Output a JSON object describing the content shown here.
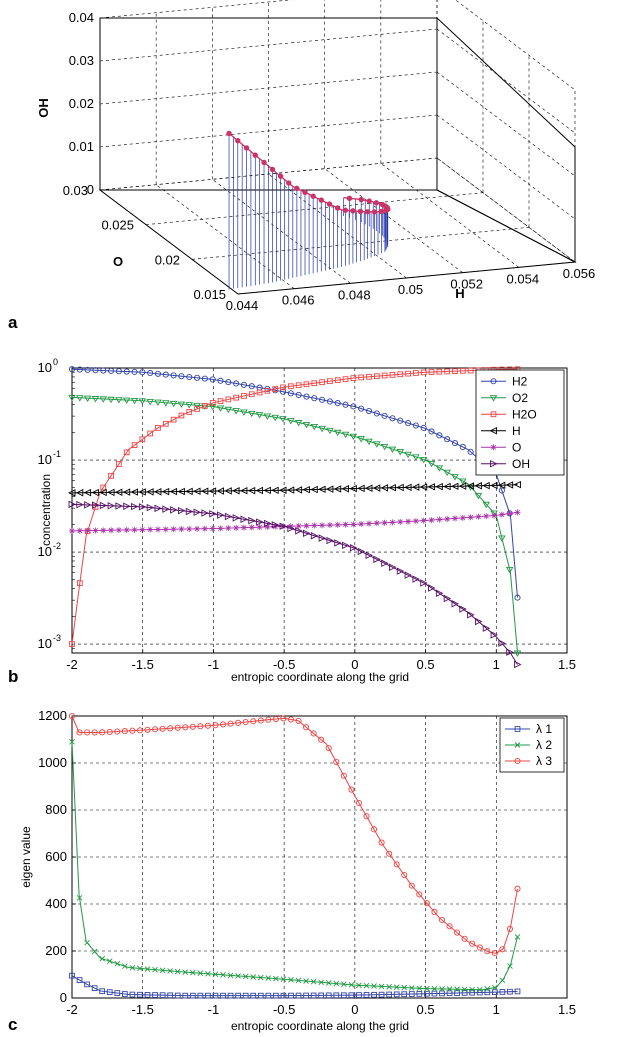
{
  "chart_data": [
    {
      "panel": "a",
      "type": "line3d",
      "xlabel": "H",
      "ylabel": "O",
      "zlabel": "OH",
      "xlim": [
        0.044,
        0.056
      ],
      "ylim": [
        0.015,
        0.03
      ],
      "zlim": [
        0,
        0.04
      ],
      "x_ticks": [
        "0.044",
        "0.046",
        "0.048",
        "0.05",
        "0.052",
        "0.054",
        "0.056"
      ],
      "y_ticks": [
        "0.015",
        "0.02",
        "0.025",
        "0.03"
      ],
      "z_ticks": [
        "0",
        "0.01",
        "0.02",
        "0.03",
        "0.04"
      ],
      "grid": true,
      "series": [
        {
          "color": "#cc3366",
          "stem_color": "#2233aa",
          "points": [
            [
              0.0445,
              0.0175,
              0.033
            ],
            [
              0.045,
              0.0176,
              0.03
            ],
            [
              0.0455,
              0.0177,
              0.027
            ],
            [
              0.046,
              0.0178,
              0.024
            ],
            [
              0.0465,
              0.018,
              0.021
            ],
            [
              0.047,
              0.0182,
              0.018
            ],
            [
              0.0475,
              0.0184,
              0.016
            ],
            [
              0.048,
              0.0186,
              0.014
            ],
            [
              0.0485,
              0.0188,
              0.012
            ],
            [
              0.049,
              0.019,
              0.01
            ],
            [
              0.0495,
              0.0193,
              0.009
            ],
            [
              0.05,
              0.0196,
              0.008
            ],
            [
              0.0505,
              0.02,
              0.007
            ],
            [
              0.051,
              0.0204,
              0.0062
            ],
            [
              0.0513,
              0.021,
              0.0055
            ],
            [
              0.0515,
              0.0217,
              0.0048
            ],
            [
              0.0516,
              0.0225,
              0.004
            ],
            [
              0.0516,
              0.0235,
              0.003
            ],
            [
              0.0515,
              0.0245,
              0.002
            ],
            [
              0.0512,
              0.0255,
              0.001
            ]
          ]
        }
      ]
    },
    {
      "panel": "b",
      "type": "line",
      "xlabel": "entropic coordinate along the grid",
      "ylabel": "concentration",
      "xlim": [
        -2,
        1.5
      ],
      "ylim": [
        0.0008,
        1
      ],
      "yscale": "log",
      "x_ticks": [
        "-2",
        "-1.5",
        "-1",
        "-0.5",
        "0",
        "0.5",
        "1",
        "1.5"
      ],
      "y_ticks": [
        "10",
        "10",
        "10",
        "10"
      ],
      "y_tick_exponents": [
        "0",
        "-1",
        "-2",
        "-3"
      ],
      "grid": true,
      "legend_position": "top-right",
      "series": [
        {
          "name": "H2",
          "color": "#3344aa",
          "marker": "circle",
          "x": [
            -2,
            -1.5,
            -1,
            -0.5,
            0,
            0.5,
            0.8,
            1,
            1.1,
            1.15
          ],
          "y": [
            0.97,
            0.9,
            0.75,
            0.55,
            0.38,
            0.22,
            0.13,
            0.07,
            0.025,
            0.0032
          ]
        },
        {
          "name": "O2",
          "color": "#229944",
          "marker": "triangle-down",
          "x": [
            -2,
            -1.5,
            -1,
            -0.5,
            0,
            0.5,
            0.8,
            1,
            1.1,
            1.15
          ],
          "y": [
            0.48,
            0.44,
            0.38,
            0.28,
            0.18,
            0.1,
            0.055,
            0.025,
            0.006,
            0.0008
          ]
        },
        {
          "name": "H2O",
          "color": "#ee4444",
          "marker": "square",
          "x": [
            -2,
            -1.95,
            -1.9,
            -1.8,
            -1.6,
            -1.4,
            -1.2,
            -1,
            -0.5,
            0,
            0.5,
            1,
            1.15
          ],
          "y": [
            0.001,
            0.004,
            0.015,
            0.045,
            0.13,
            0.22,
            0.32,
            0.42,
            0.62,
            0.78,
            0.9,
            0.96,
            0.97
          ]
        },
        {
          "name": "H",
          "color": "#000000",
          "marker": "triangle-left",
          "x": [
            -2,
            -1.5,
            -1,
            -0.5,
            0,
            0.5,
            1,
            1.15
          ],
          "y": [
            0.044,
            0.045,
            0.046,
            0.047,
            0.049,
            0.051,
            0.053,
            0.054
          ]
        },
        {
          "name": "O",
          "color": "#aa33aa",
          "marker": "star",
          "x": [
            -2,
            -1.5,
            -1,
            -0.5,
            0,
            0.5,
            1,
            1.15
          ],
          "y": [
            0.017,
            0.0175,
            0.018,
            0.019,
            0.02,
            0.022,
            0.025,
            0.027
          ]
        },
        {
          "name": "OH",
          "color": "#551166",
          "marker": "triangle-right",
          "x": [
            -2,
            -1.5,
            -1,
            -0.5,
            0,
            0.5,
            0.8,
            1,
            1.1,
            1.15
          ],
          "y": [
            0.033,
            0.031,
            0.026,
            0.019,
            0.011,
            0.0045,
            0.0022,
            0.0012,
            0.0008,
            0.0006
          ]
        }
      ]
    },
    {
      "panel": "c",
      "type": "line",
      "xlabel": "entropic coordinate along the grid",
      "ylabel": "eigen value",
      "xlim": [
        -2,
        1.5
      ],
      "ylim": [
        0,
        1200
      ],
      "x_ticks": [
        "-2",
        "-1.5",
        "-1",
        "-0.5",
        "0",
        "0.5",
        "1",
        "1.5"
      ],
      "y_ticks": [
        "0",
        "200",
        "400",
        "600",
        "800",
        "1000",
        "1200"
      ],
      "grid": true,
      "legend_position": "top-right",
      "series": [
        {
          "name": "λ 1",
          "color": "#3344aa",
          "marker": "square",
          "x": [
            -2,
            -1.9,
            -1.8,
            -1.6,
            -1.2,
            -0.5,
            0,
            0.5,
            1,
            1.15
          ],
          "y": [
            95,
            60,
            30,
            15,
            10,
            10,
            12,
            18,
            25,
            28
          ]
        },
        {
          "name": "λ 2",
          "color": "#229944",
          "marker": "x",
          "x": [
            -2,
            -1.95,
            -1.9,
            -1.8,
            -1.6,
            -1.2,
            -0.5,
            0,
            0.5,
            0.9,
            1,
            1.05,
            1.1,
            1.15
          ],
          "y": [
            1090,
            440,
            240,
            170,
            130,
            110,
            80,
            55,
            40,
            35,
            45,
            80,
            140,
            260
          ]
        },
        {
          "name": "λ 3",
          "color": "#ee4444",
          "marker": "circle",
          "x": [
            -2,
            -1.95,
            -1.8,
            -1.5,
            -1,
            -0.6,
            -0.5,
            -0.4,
            -0.2,
            0,
            0.2,
            0.4,
            0.6,
            0.8,
            0.95,
            1,
            1.05,
            1.1,
            1.15
          ],
          "y": [
            1200,
            1130,
            1130,
            1140,
            1160,
            1185,
            1190,
            1180,
            1080,
            860,
            650,
            480,
            340,
            240,
            195,
            190,
            210,
            300,
            465
          ]
        }
      ]
    }
  ]
}
